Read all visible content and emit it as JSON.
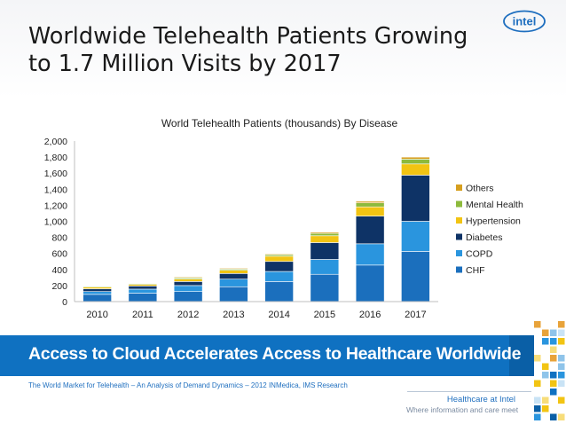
{
  "slide": {
    "title_line1": "Worldwide Telehealth Patients Growing",
    "title_line2": "to 1.7 Million Visits by 2017",
    "logo_text": "intel",
    "banner": "Access to Cloud Accelerates Access to Healthcare Worldwide",
    "source": "The World Market for Telehealth – An Analysis of Demand Dynamics – 2012 INMedica, IMS Research",
    "footer_line1": "Healthcare at Intel",
    "footer_line2": "Where information and care meet"
  },
  "colors": {
    "CHF": "#1b6fbd",
    "COPD": "#2a95de",
    "Diabetes": "#0e3366",
    "Hypertension": "#f2c413",
    "Mental Health": "#8dba3c",
    "Others": "#d69f1f",
    "banner": "#0f71c1",
    "title": "#1a1a1a"
  },
  "chart_data": {
    "type": "bar",
    "stacked": true,
    "title": "World Telehealth Patients (thousands) By Disease",
    "categories": [
      "2010",
      "2011",
      "2012",
      "2013",
      "2014",
      "2015",
      "2016",
      "2017"
    ],
    "series": [
      {
        "name": "CHF",
        "values": [
          90,
          105,
          125,
          185,
          250,
          340,
          455,
          625
        ]
      },
      {
        "name": "COPD",
        "values": [
          35,
          50,
          75,
          95,
          125,
          185,
          265,
          375
        ]
      },
      {
        "name": "Diabetes",
        "values": [
          35,
          40,
          50,
          70,
          125,
          210,
          345,
          575
        ]
      },
      {
        "name": "Hypertension",
        "values": [
          20,
          20,
          30,
          40,
          65,
          85,
          115,
          140
        ]
      },
      {
        "name": "Mental Health",
        "values": [
          10,
          10,
          15,
          15,
          20,
          30,
          50,
          60
        ]
      },
      {
        "name": "Others",
        "values": [
          5,
          5,
          10,
          10,
          10,
          15,
          20,
          25
        ]
      }
    ],
    "yticks": [
      "0",
      "200",
      "400",
      "600",
      "800",
      "1,000",
      "1,200",
      "1,400",
      "1,600",
      "1,800",
      "2,000"
    ],
    "ylim": [
      0,
      2000
    ],
    "grid": false,
    "legend": {
      "placement": "right",
      "order": [
        "Others",
        "Mental Health",
        "Hypertension",
        "Diabetes",
        "COPD",
        "CHF"
      ]
    }
  }
}
